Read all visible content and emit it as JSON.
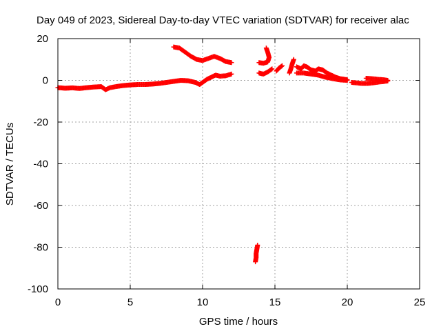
{
  "chart_data": {
    "type": "scatter",
    "title": "Day 049 of 2023, Sidereal Day-to-day VTEC variation (SDTVAR) for receiver alac",
    "xlabel": "GPS time / hours",
    "ylabel": "SDTVAR / TECUs",
    "xlim": [
      0,
      25
    ],
    "ylim": [
      -100,
      20
    ],
    "xticks": [
      0,
      5,
      10,
      15,
      20,
      25
    ],
    "yticks": [
      -100,
      -80,
      -60,
      -40,
      -20,
      0,
      20
    ],
    "grid": true,
    "marker": "plus",
    "colors": {
      "series": "#ff0000",
      "grid": "#a0a0a0",
      "axis": "#000000"
    },
    "series": [
      {
        "name": "SDTVAR",
        "segments": [
          [
            [
              0.0,
              -3.5
            ],
            [
              0.5,
              -3.8
            ],
            [
              1.0,
              -3.6
            ],
            [
              1.5,
              -3.9
            ],
            [
              2.0,
              -3.5
            ],
            [
              2.5,
              -3.2
            ],
            [
              3.0,
              -3.0
            ],
            [
              3.3,
              -4.5
            ],
            [
              3.6,
              -3.5
            ],
            [
              4.0,
              -3.0
            ],
            [
              4.5,
              -2.5
            ],
            [
              5.0,
              -2.2
            ],
            [
              5.5,
              -2.0
            ],
            [
              6.0,
              -2.0
            ],
            [
              6.5,
              -1.8
            ],
            [
              7.0,
              -1.5
            ],
            [
              7.5,
              -1.0
            ],
            [
              8.0,
              -0.5
            ],
            [
              8.5,
              0.0
            ],
            [
              9.0,
              -0.2
            ],
            [
              9.5,
              -1.0
            ],
            [
              9.8,
              -2.0
            ],
            [
              10.0,
              -1.0
            ],
            [
              10.3,
              0.5
            ],
            [
              10.6,
              1.5
            ],
            [
              10.9,
              2.5
            ],
            [
              11.2,
              2.0
            ],
            [
              11.6,
              2.2
            ],
            [
              12.0,
              3.0
            ]
          ],
          [
            [
              8.0,
              16.0
            ],
            [
              8.4,
              15.5
            ],
            [
              8.8,
              13.5
            ],
            [
              9.2,
              11.5
            ],
            [
              9.6,
              10.0
            ],
            [
              10.0,
              9.5
            ],
            [
              10.4,
              10.5
            ],
            [
              10.8,
              11.5
            ],
            [
              11.2,
              10.5
            ],
            [
              11.6,
              9.0
            ],
            [
              12.0,
              8.5
            ]
          ],
          [
            [
              13.8,
              -79.0
            ],
            [
              13.75,
              -81.0
            ],
            [
              13.7,
              -83.0
            ],
            [
              13.7,
              -85.0
            ],
            [
              13.65,
              -87.0
            ]
          ],
          [
            [
              13.9,
              8.5
            ],
            [
              14.2,
              8.2
            ],
            [
              14.5,
              8.8
            ],
            [
              14.6,
              11.0
            ],
            [
              14.5,
              13.5
            ],
            [
              14.4,
              15.5
            ]
          ],
          [
            [
              13.9,
              3.5
            ],
            [
              14.2,
              3.0
            ],
            [
              14.5,
              4.0
            ],
            [
              14.8,
              5.5
            ]
          ],
          [
            [
              15.1,
              4.5
            ],
            [
              15.3,
              6.0
            ],
            [
              15.5,
              7.0
            ]
          ],
          [
            [
              16.0,
              3.5
            ],
            [
              16.1,
              5.5
            ],
            [
              16.2,
              8.0
            ],
            [
              16.3,
              10.0
            ]
          ],
          [
            [
              16.5,
              6.5
            ],
            [
              16.8,
              5.5
            ],
            [
              17.0,
              7.0
            ],
            [
              17.2,
              6.5
            ],
            [
              17.5,
              5.0
            ],
            [
              17.8,
              4.5
            ],
            [
              18.0,
              5.5
            ],
            [
              18.3,
              5.0
            ],
            [
              18.6,
              3.5
            ],
            [
              18.9,
              2.5
            ],
            [
              19.2,
              1.5
            ],
            [
              19.5,
              0.8
            ],
            [
              19.8,
              0.5
            ],
            [
              20.0,
              0.3
            ]
          ],
          [
            [
              16.5,
              3.5
            ],
            [
              17.0,
              3.5
            ],
            [
              17.5,
              3.0
            ],
            [
              18.0,
              2.5
            ],
            [
              18.5,
              1.5
            ],
            [
              19.0,
              0.8
            ],
            [
              19.5,
              0.2
            ],
            [
              20.0,
              0.0
            ]
          ],
          [
            [
              20.3,
              -1.0
            ],
            [
              20.6,
              -1.2
            ],
            [
              21.0,
              -1.5
            ],
            [
              21.4,
              -1.5
            ],
            [
              21.8,
              -1.2
            ],
            [
              22.2,
              -0.8
            ],
            [
              22.6,
              -0.5
            ],
            [
              22.8,
              -0.3
            ]
          ],
          [
            [
              21.3,
              1.0
            ],
            [
              21.7,
              0.8
            ],
            [
              22.1,
              0.5
            ],
            [
              22.5,
              0.3
            ],
            [
              22.8,
              0.0
            ]
          ]
        ]
      }
    ]
  }
}
